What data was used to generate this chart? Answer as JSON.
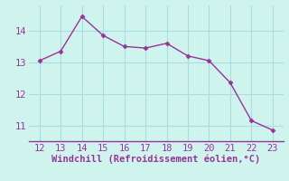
{
  "x": [
    12,
    13,
    14,
    15,
    16,
    17,
    18,
    19,
    20,
    21,
    22,
    23
  ],
  "y": [
    13.05,
    13.35,
    14.45,
    13.85,
    13.5,
    13.45,
    13.6,
    13.2,
    13.05,
    12.35,
    11.15,
    10.85
  ],
  "line_color": "#993399",
  "marker": "D",
  "marker_size": 2.5,
  "background_color": "#cff4ee",
  "grid_color": "#aadddd",
  "xlabel": "Windchill (Refroidissement éolien,°C)",
  "xlabel_color": "#993399",
  "tick_color": "#993399",
  "xlim": [
    11.5,
    23.5
  ],
  "ylim": [
    10.5,
    14.8
  ],
  "xticks": [
    12,
    13,
    14,
    15,
    16,
    17,
    18,
    19,
    20,
    21,
    22,
    23
  ],
  "yticks": [
    11,
    12,
    13,
    14
  ],
  "xlabel_fontsize": 7.5,
  "tick_fontsize": 7.5
}
